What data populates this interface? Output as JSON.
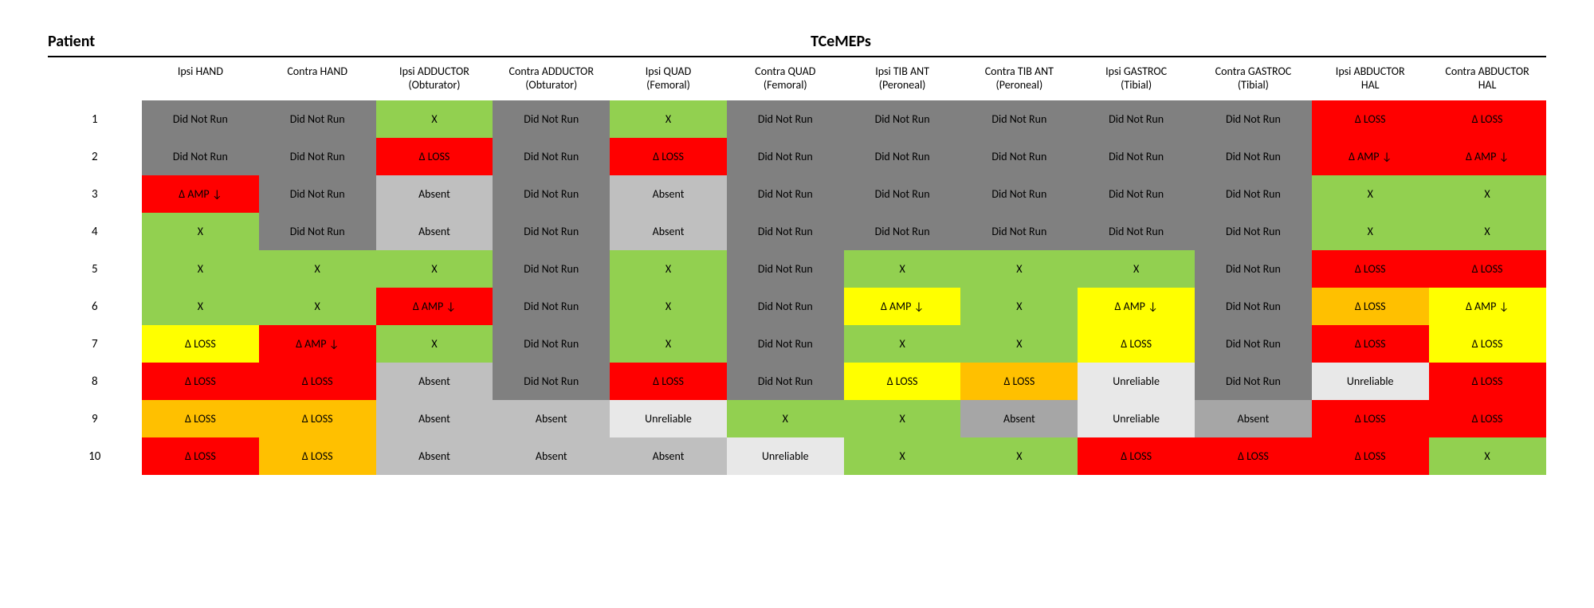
{
  "title_left": "Patient",
  "title_right": "TCeMEPs",
  "colors": {
    "didnotrun": "#808080",
    "green": "#92d050",
    "red": "#ff0000",
    "yellow": "#ffff00",
    "orange": "#ffc000",
    "absent_light": "#bfbfbf",
    "absent_mid": "#a6a6a6",
    "unreliable": "#e8e8e8",
    "white": "#ffffff",
    "text": "#000000"
  },
  "columns": [
    {
      "label": "Ipsi HAND"
    },
    {
      "label": "Contra HAND"
    },
    {
      "label": "Ipsi ADDUCTOR\n(Obturator)"
    },
    {
      "label": "Contra ADDUCTOR\n(Obturator)"
    },
    {
      "label": "Ipsi QUAD\n(Femoral)"
    },
    {
      "label": "Contra QUAD\n(Femoral)"
    },
    {
      "label": "Ipsi TIB ANT\n(Peroneal)"
    },
    {
      "label": "Contra TIB ANT\n(Peroneal)"
    },
    {
      "label": "Ipsi GASTROC\n(Tibial)"
    },
    {
      "label": "Contra GASTROC\n(Tibial)"
    },
    {
      "label": "Ipsi ABDUCTOR\nHAL"
    },
    {
      "label": "Contra ABDUCTOR\nHAL"
    }
  ],
  "rows": [
    {
      "id": "1",
      "cells": [
        {
          "t": "Did Not Run",
          "c": "didnotrun"
        },
        {
          "t": "Did Not Run",
          "c": "didnotrun"
        },
        {
          "t": "X",
          "c": "green"
        },
        {
          "t": "Did Not Run",
          "c": "didnotrun"
        },
        {
          "t": "X",
          "c": "green"
        },
        {
          "t": "Did Not Run",
          "c": "didnotrun"
        },
        {
          "t": "Did Not Run",
          "c": "didnotrun"
        },
        {
          "t": "Did Not Run",
          "c": "didnotrun"
        },
        {
          "t": "Did Not Run",
          "c": "didnotrun"
        },
        {
          "t": "Did Not Run",
          "c": "didnotrun"
        },
        {
          "t": "Δ LOSS",
          "c": "red"
        },
        {
          "t": "Δ LOSS",
          "c": "red"
        }
      ]
    },
    {
      "id": "2",
      "cells": [
        {
          "t": "Did Not Run",
          "c": "didnotrun"
        },
        {
          "t": "Did Not Run",
          "c": "didnotrun"
        },
        {
          "t": "Δ LOSS",
          "c": "red"
        },
        {
          "t": "Did Not Run",
          "c": "didnotrun"
        },
        {
          "t": "Δ LOSS",
          "c": "red"
        },
        {
          "t": "Did Not Run",
          "c": "didnotrun"
        },
        {
          "t": "Did Not Run",
          "c": "didnotrun"
        },
        {
          "t": "Did Not Run",
          "c": "didnotrun"
        },
        {
          "t": "Did Not Run",
          "c": "didnotrun"
        },
        {
          "t": "Did Not Run",
          "c": "didnotrun"
        },
        {
          "t": "Δ AMP ↓",
          "c": "red"
        },
        {
          "t": "Δ AMP ↓",
          "c": "red"
        }
      ]
    },
    {
      "id": "3",
      "cells": [
        {
          "t": "Δ AMP ↓",
          "c": "red"
        },
        {
          "t": "Did Not Run",
          "c": "didnotrun"
        },
        {
          "t": "Absent",
          "c": "absent_light"
        },
        {
          "t": "Did Not Run",
          "c": "didnotrun"
        },
        {
          "t": "Absent",
          "c": "absent_light"
        },
        {
          "t": "Did Not Run",
          "c": "didnotrun"
        },
        {
          "t": "Did Not Run",
          "c": "didnotrun"
        },
        {
          "t": "Did Not Run",
          "c": "didnotrun"
        },
        {
          "t": "Did Not Run",
          "c": "didnotrun"
        },
        {
          "t": "Did Not Run",
          "c": "didnotrun"
        },
        {
          "t": "X",
          "c": "green"
        },
        {
          "t": "X",
          "c": "green"
        }
      ]
    },
    {
      "id": "4",
      "cells": [
        {
          "t": "X",
          "c": "green"
        },
        {
          "t": "Did Not Run",
          "c": "didnotrun"
        },
        {
          "t": "Absent",
          "c": "absent_light"
        },
        {
          "t": "Did Not Run",
          "c": "didnotrun"
        },
        {
          "t": "Absent",
          "c": "absent_light"
        },
        {
          "t": "Did Not Run",
          "c": "didnotrun"
        },
        {
          "t": "Did Not Run",
          "c": "didnotrun"
        },
        {
          "t": "Did Not Run",
          "c": "didnotrun"
        },
        {
          "t": "Did Not Run",
          "c": "didnotrun"
        },
        {
          "t": "Did Not Run",
          "c": "didnotrun"
        },
        {
          "t": "X",
          "c": "green"
        },
        {
          "t": "X",
          "c": "green"
        }
      ]
    },
    {
      "id": "5",
      "cells": [
        {
          "t": "X",
          "c": "green"
        },
        {
          "t": "X",
          "c": "green"
        },
        {
          "t": "X",
          "c": "green"
        },
        {
          "t": "Did Not Run",
          "c": "didnotrun"
        },
        {
          "t": "X",
          "c": "green"
        },
        {
          "t": "Did Not Run",
          "c": "didnotrun"
        },
        {
          "t": "X",
          "c": "green"
        },
        {
          "t": "X",
          "c": "green"
        },
        {
          "t": "X",
          "c": "green"
        },
        {
          "t": "Did Not Run",
          "c": "didnotrun"
        },
        {
          "t": "Δ LOSS",
          "c": "red"
        },
        {
          "t": "Δ LOSS",
          "c": "red"
        }
      ]
    },
    {
      "id": "6",
      "cells": [
        {
          "t": "X",
          "c": "green"
        },
        {
          "t": "X",
          "c": "green"
        },
        {
          "t": "Δ AMP ↓",
          "c": "red"
        },
        {
          "t": "Did Not Run",
          "c": "didnotrun"
        },
        {
          "t": "X",
          "c": "green"
        },
        {
          "t": "Did Not Run",
          "c": "didnotrun"
        },
        {
          "t": "Δ AMP ↓",
          "c": "yellow"
        },
        {
          "t": "X",
          "c": "green"
        },
        {
          "t": "Δ AMP ↓",
          "c": "yellow"
        },
        {
          "t": "Did Not Run",
          "c": "didnotrun"
        },
        {
          "t": "Δ LOSS",
          "c": "orange"
        },
        {
          "t": "Δ AMP ↓",
          "c": "yellow"
        }
      ]
    },
    {
      "id": "7",
      "cells": [
        {
          "t": "Δ LOSS",
          "c": "yellow"
        },
        {
          "t": "Δ AMP ↓",
          "c": "red"
        },
        {
          "t": "X",
          "c": "green"
        },
        {
          "t": "Did Not Run",
          "c": "didnotrun"
        },
        {
          "t": "X",
          "c": "green"
        },
        {
          "t": "Did Not Run",
          "c": "didnotrun"
        },
        {
          "t": "X",
          "c": "green"
        },
        {
          "t": "X",
          "c": "green"
        },
        {
          "t": "Δ LOSS",
          "c": "yellow"
        },
        {
          "t": "Did Not Run",
          "c": "didnotrun"
        },
        {
          "t": "Δ LOSS",
          "c": "red"
        },
        {
          "t": "Δ LOSS",
          "c": "yellow"
        }
      ]
    },
    {
      "id": "8",
      "cells": [
        {
          "t": "Δ LOSS",
          "c": "red"
        },
        {
          "t": "Δ LOSS",
          "c": "red"
        },
        {
          "t": "Absent",
          "c": "absent_light"
        },
        {
          "t": "Did Not Run",
          "c": "didnotrun"
        },
        {
          "t": "Δ LOSS",
          "c": "red"
        },
        {
          "t": "Did Not Run",
          "c": "didnotrun"
        },
        {
          "t": "Δ LOSS",
          "c": "yellow"
        },
        {
          "t": "Δ LOSS",
          "c": "orange"
        },
        {
          "t": "Unreliable",
          "c": "unreliable"
        },
        {
          "t": "Did Not Run",
          "c": "didnotrun"
        },
        {
          "t": "Unreliable",
          "c": "unreliable"
        },
        {
          "t": "Δ LOSS",
          "c": "red"
        }
      ]
    },
    {
      "id": "9",
      "cells": [
        {
          "t": "Δ LOSS",
          "c": "orange"
        },
        {
          "t": "Δ LOSS",
          "c": "orange"
        },
        {
          "t": "Absent",
          "c": "absent_light"
        },
        {
          "t": "Absent",
          "c": "absent_light"
        },
        {
          "t": "Unreliable",
          "c": "unreliable"
        },
        {
          "t": "X",
          "c": "green"
        },
        {
          "t": "X",
          "c": "green"
        },
        {
          "t": "Absent",
          "c": "absent_mid"
        },
        {
          "t": "Unreliable",
          "c": "unreliable"
        },
        {
          "t": "Absent",
          "c": "absent_mid"
        },
        {
          "t": "Δ LOSS",
          "c": "red"
        },
        {
          "t": "Δ LOSS",
          "c": "red"
        }
      ]
    },
    {
      "id": "10",
      "cells": [
        {
          "t": "Δ LOSS",
          "c": "red"
        },
        {
          "t": "Δ LOSS",
          "c": "orange"
        },
        {
          "t": "Absent",
          "c": "absent_light"
        },
        {
          "t": "Absent",
          "c": "absent_light"
        },
        {
          "t": "Absent",
          "c": "absent_light"
        },
        {
          "t": "Unreliable",
          "c": "unreliable"
        },
        {
          "t": "X",
          "c": "green"
        },
        {
          "t": "X",
          "c": "green"
        },
        {
          "t": "Δ LOSS",
          "c": "red"
        },
        {
          "t": "Δ LOSS",
          "c": "red"
        },
        {
          "t": "Δ LOSS",
          "c": "red"
        },
        {
          "t": "X",
          "c": "green"
        }
      ]
    }
  ]
}
